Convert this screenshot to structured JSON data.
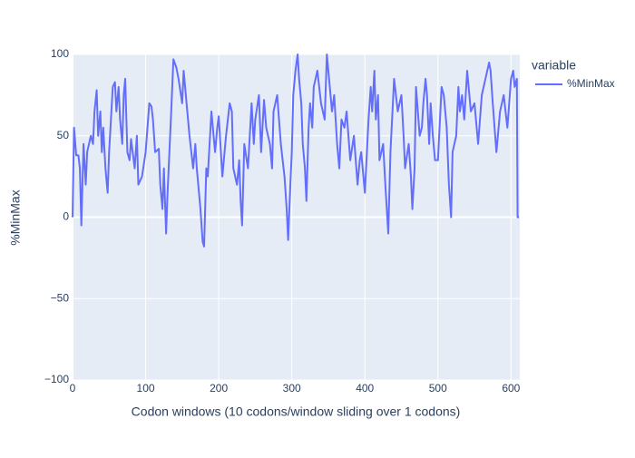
{
  "chart_data": {
    "type": "line",
    "x_label": "Codon windows (10 codons/window sliding over 1 codons)",
    "y_label": "%MinMax",
    "legend_title": "variable",
    "legend_position": "right",
    "grid": true,
    "xlim": [
      0,
      612
    ],
    "xticks": [
      0,
      100,
      200,
      300,
      400,
      500,
      600
    ],
    "ylim": [
      -100,
      100
    ],
    "yticks": [
      {
        "value": -100,
        "label": "−100"
      },
      {
        "value": -50,
        "label": "−50"
      },
      0,
      50,
      100
    ],
    "x": [
      0,
      2,
      5,
      8,
      10,
      12,
      15,
      18,
      20,
      25,
      28,
      30,
      33,
      35,
      38,
      40,
      42,
      45,
      48,
      50,
      55,
      58,
      60,
      63,
      65,
      68,
      70,
      72,
      75,
      78,
      80,
      85,
      88,
      90,
      95,
      100,
      105,
      108,
      110,
      113,
      118,
      120,
      123,
      125,
      128,
      130,
      135,
      138,
      142,
      145,
      150,
      152,
      155,
      158,
      160,
      165,
      168,
      170,
      175,
      178,
      180,
      183,
      185,
      190,
      195,
      198,
      200,
      205,
      210,
      215,
      218,
      220,
      225,
      228,
      230,
      232,
      235,
      240,
      245,
      248,
      250,
      255,
      258,
      262,
      265,
      270,
      273,
      275,
      280,
      285,
      290,
      293,
      295,
      298,
      300,
      302,
      305,
      308,
      310,
      313,
      315,
      318,
      320,
      323,
      325,
      328,
      330,
      335,
      340,
      345,
      348,
      352,
      355,
      358,
      362,
      365,
      368,
      372,
      375,
      380,
      385,
      390,
      393,
      395,
      398,
      400,
      405,
      408,
      410,
      413,
      415,
      418,
      420,
      425,
      428,
      430,
      432,
      435,
      440,
      445,
      450,
      453,
      455,
      460,
      463,
      465,
      468,
      470,
      475,
      478,
      480,
      483,
      485,
      488,
      490,
      493,
      496,
      500,
      505,
      508,
      512,
      515,
      518,
      520,
      525,
      528,
      530,
      533,
      536,
      540,
      545,
      550,
      555,
      560,
      565,
      570,
      572,
      575,
      580,
      585,
      590,
      595,
      600,
      603,
      605,
      608,
      609,
      611
    ],
    "series": [
      {
        "name": "%MinMax",
        "color": "#636efa",
        "values": [
          0,
          55,
          38,
          38,
          30,
          -5,
          45,
          20,
          40,
          50,
          45,
          65,
          78,
          50,
          65,
          40,
          55,
          30,
          15,
          40,
          80,
          83,
          65,
          80,
          60,
          45,
          75,
          85,
          40,
          35,
          48,
          30,
          50,
          20,
          25,
          40,
          70,
          68,
          60,
          40,
          42,
          20,
          5,
          30,
          -10,
          15,
          65,
          97,
          92,
          85,
          70,
          90,
          75,
          60,
          50,
          30,
          45,
          30,
          5,
          -15,
          -18,
          30,
          25,
          65,
          40,
          55,
          62,
          25,
          50,
          70,
          65,
          30,
          20,
          35,
          10,
          -5,
          45,
          30,
          70,
          45,
          60,
          75,
          40,
          72,
          55,
          45,
          30,
          65,
          75,
          45,
          25,
          5,
          -14,
          20,
          40,
          75,
          90,
          100,
          85,
          70,
          45,
          30,
          10,
          55,
          70,
          55,
          80,
          90,
          70,
          60,
          100,
          80,
          65,
          75,
          45,
          30,
          60,
          55,
          65,
          35,
          50,
          20,
          35,
          40,
          25,
          15,
          60,
          80,
          65,
          90,
          60,
          75,
          35,
          45,
          20,
          5,
          -10,
          40,
          85,
          65,
          75,
          50,
          30,
          45,
          25,
          5,
          30,
          80,
          50,
          55,
          70,
          85,
          75,
          45,
          70,
          50,
          35,
          35,
          80,
          75,
          55,
          20,
          0,
          40,
          50,
          80,
          65,
          75,
          60,
          90,
          65,
          70,
          45,
          75,
          85,
          95,
          90,
          70,
          40,
          65,
          75,
          55,
          85,
          90,
          80,
          85,
          0,
          0
        ]
      }
    ]
  }
}
